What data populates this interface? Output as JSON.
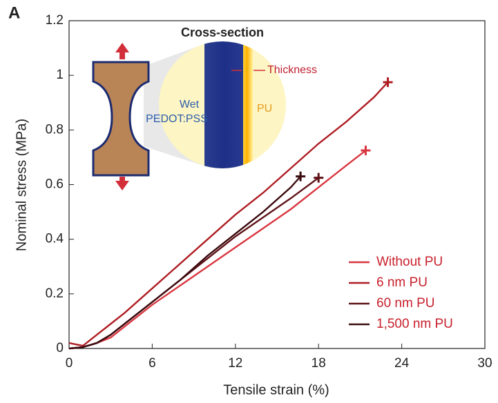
{
  "chart_data": {
    "type": "line",
    "panel_label": "A",
    "xlabel": "Tensile strain (%)",
    "ylabel": "Nominal stress (MPa)",
    "xlim": [
      0,
      30
    ],
    "xticks": [
      0,
      6,
      12,
      18,
      24,
      30
    ],
    "ylim": [
      0,
      1.2
    ],
    "yticks": [
      0,
      0.2,
      0.4,
      0.6,
      0.8,
      1,
      1.2
    ],
    "legend": "lower right",
    "series": [
      {
        "name": "Without PU",
        "color": "#d8353f",
        "x": [
          0,
          1,
          2,
          3,
          4,
          6,
          8,
          10,
          12,
          14,
          16,
          18,
          20,
          21.4
        ],
        "values": [
          0,
          0.005,
          0.02,
          0.04,
          0.08,
          0.16,
          0.23,
          0.3,
          0.37,
          0.44,
          0.51,
          0.59,
          0.67,
          0.725
        ]
      },
      {
        "name": "6 nm PU",
        "color": "#ae1c22",
        "x": [
          0,
          1,
          2,
          3,
          4,
          6,
          8,
          10,
          12,
          14,
          16,
          18,
          20,
          22,
          23
        ],
        "values": [
          0.02,
          0.01,
          0.05,
          0.09,
          0.13,
          0.22,
          0.31,
          0.4,
          0.49,
          0.57,
          0.66,
          0.75,
          0.83,
          0.92,
          0.975
        ]
      },
      {
        "name": "60 nm PU",
        "color": "#5e1217",
        "x": [
          0,
          1,
          2,
          3,
          4,
          6,
          8,
          10,
          12,
          14,
          16,
          18
        ],
        "values": [
          0,
          0.005,
          0.02,
          0.05,
          0.09,
          0.17,
          0.25,
          0.33,
          0.41,
          0.48,
          0.55,
          0.625
        ]
      },
      {
        "name": "1,500 nm PU",
        "color": "#3a0a0e",
        "x": [
          0,
          1,
          2,
          3,
          4,
          6,
          8,
          10,
          12,
          14,
          16,
          16.7
        ],
        "values": [
          0,
          0.005,
          0.02,
          0.05,
          0.09,
          0.17,
          0.25,
          0.34,
          0.42,
          0.5,
          0.59,
          0.63
        ]
      }
    ],
    "inset": {
      "title": "Cross-section",
      "labels": [
        "Wet",
        "PEDOT:PSS",
        "Thickness",
        "PU"
      ]
    }
  }
}
